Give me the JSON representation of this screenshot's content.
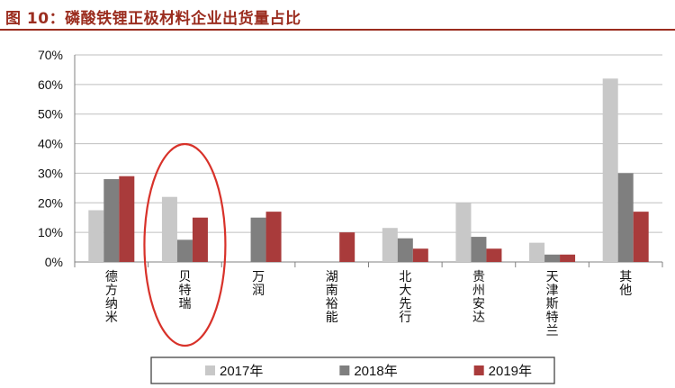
{
  "title": "图 10：磷酸铁锂正极材料企业出货量占比",
  "colors": {
    "accent": "#9b2d1f",
    "highlight_ring": "#d8322a",
    "grid": "#bfbfbf",
    "axis": "#808080"
  },
  "chart_data": {
    "type": "bar",
    "title": "图 10：磷酸铁锂正极材料企业出货量占比",
    "xlabel": "",
    "ylabel": "",
    "categories": [
      "德方纳米",
      "贝特瑞",
      "万润",
      "湖南裕能",
      "北大先行",
      "贵州安达",
      "天津斯特兰",
      "其他"
    ],
    "y_ticks": [
      "0%",
      "10%",
      "20%",
      "30%",
      "40%",
      "50%",
      "60%",
      "70%"
    ],
    "ylim": [
      0,
      70
    ],
    "grid": true,
    "legend_position": "bottom",
    "highlighted_category": "贝特瑞",
    "series": [
      {
        "name": "2017年",
        "color": "#c8c8c8",
        "values": [
          17.5,
          22,
          0,
          0,
          11.5,
          20,
          6.5,
          62
        ]
      },
      {
        "name": "2018年",
        "color": "#7f7f7f",
        "values": [
          28,
          7.5,
          15,
          0,
          8,
          8.5,
          2.5,
          30
        ]
      },
      {
        "name": "2019年",
        "color": "#a93b3b",
        "values": [
          29,
          15,
          17,
          10,
          4.5,
          4.5,
          2.5,
          17
        ]
      }
    ]
  }
}
